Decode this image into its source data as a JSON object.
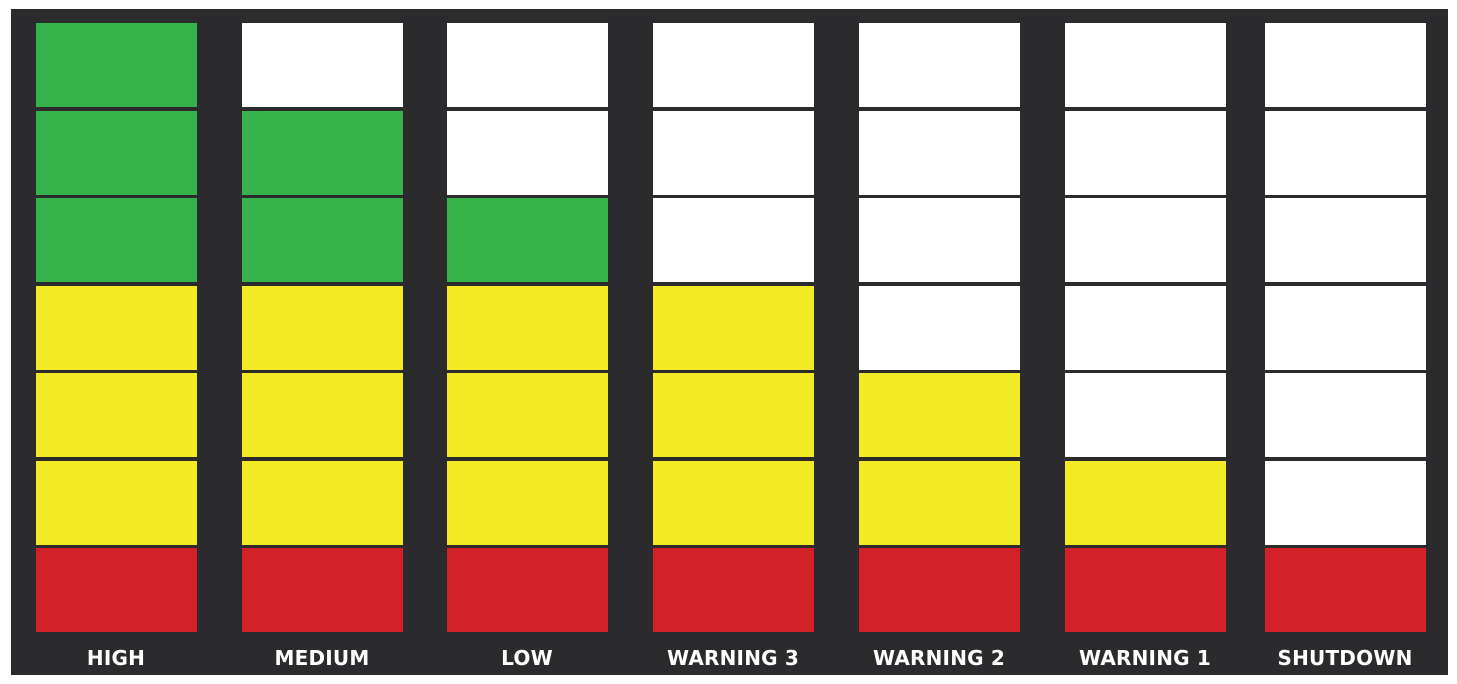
{
  "colors": {
    "panel": "#2b2b2e",
    "green": "#36b44b",
    "yellow": "#f2ea23",
    "red": "#d32128",
    "empty": "#ffffff",
    "label_text": "#ffffff"
  },
  "levels": [
    {
      "label": "HIGH",
      "cells": [
        "green",
        "green",
        "green",
        "yellow",
        "yellow",
        "yellow",
        "red"
      ]
    },
    {
      "label": "MEDIUM",
      "cells": [
        "empty",
        "green",
        "green",
        "yellow",
        "yellow",
        "yellow",
        "red"
      ]
    },
    {
      "label": "LOW",
      "cells": [
        "empty",
        "empty",
        "green",
        "yellow",
        "yellow",
        "yellow",
        "red"
      ]
    },
    {
      "label": "WARNING 3",
      "cells": [
        "empty",
        "empty",
        "empty",
        "yellow",
        "yellow",
        "yellow",
        "red"
      ]
    },
    {
      "label": "WARNING 2",
      "cells": [
        "empty",
        "empty",
        "empty",
        "empty",
        "yellow",
        "yellow",
        "red"
      ]
    },
    {
      "label": "WARNING 1",
      "cells": [
        "empty",
        "empty",
        "empty",
        "empty",
        "empty",
        "yellow",
        "red"
      ]
    },
    {
      "label": "SHUTDOWN",
      "cells": [
        "empty",
        "empty",
        "empty",
        "empty",
        "empty",
        "empty",
        "red"
      ]
    }
  ]
}
